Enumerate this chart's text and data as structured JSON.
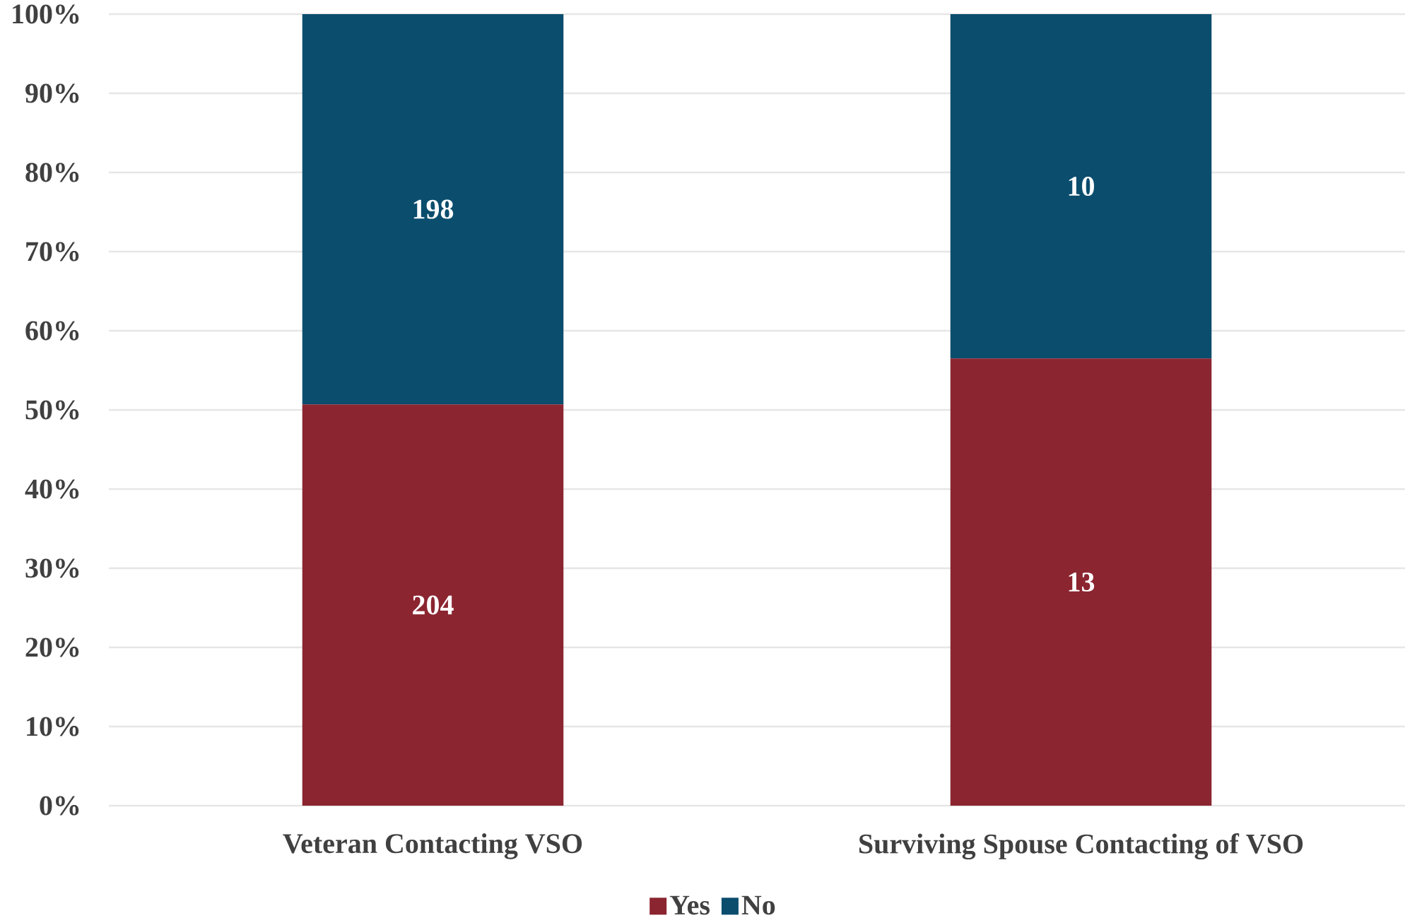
{
  "chart_data": {
    "type": "bar",
    "stacked": true,
    "categories": [
      "Veteran Contacting VSO",
      "Surviving Spouse Contacting of VSO"
    ],
    "series": [
      {
        "name": "Yes",
        "color": "#8b2530",
        "values": [
          50.7,
          56.5
        ]
      },
      {
        "name": "No",
        "color": "#0b4d6d",
        "values": [
          49.3,
          43.5
        ]
      }
    ],
    "annotations": [
      "204",
      "13",
      "198",
      "10"
    ],
    "ylim": [
      0,
      100
    ],
    "yticks": [
      {
        "value": 0,
        "label": "0%"
      },
      {
        "value": 10,
        "label": "10%"
      },
      {
        "value": 20,
        "label": "20%"
      },
      {
        "value": 30,
        "label": "30%"
      },
      {
        "value": 40,
        "label": "40%"
      },
      {
        "value": 50,
        "label": "50%"
      },
      {
        "value": 60,
        "label": "60%"
      },
      {
        "value": 70,
        "label": "70%"
      },
      {
        "value": 80,
        "label": "80%"
      },
      {
        "value": 90,
        "label": "90%"
      },
      {
        "value": 100,
        "label": "100%"
      }
    ],
    "grid": "y",
    "legend": "bottom"
  }
}
